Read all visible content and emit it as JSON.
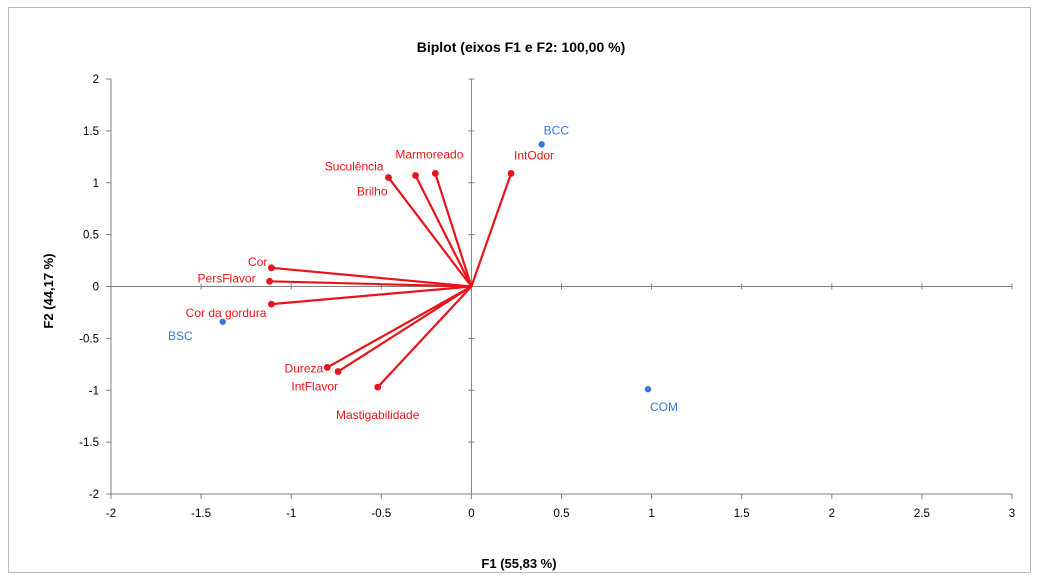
{
  "chart_data": {
    "type": "scatter",
    "subtype": "biplot",
    "title": "Biplot (eixos F1 e F2: 100,00 %)",
    "xlabel": "F1 (55,83 %)",
    "ylabel": "F2 (44,17 %)",
    "xlim": [
      -2,
      3
    ],
    "ylim": [
      -2,
      2
    ],
    "x_ticks": [
      -2,
      -1.5,
      -1,
      -0.5,
      0,
      0.5,
      1,
      1.5,
      2,
      2.5,
      3
    ],
    "x_tick_labels": [
      "-2",
      "-1.5",
      "-1",
      "-0.5",
      "0",
      "0.5",
      "1",
      "1.5",
      "2",
      "2.5",
      "3"
    ],
    "y_ticks": [
      -2,
      -1.5,
      -1,
      -0.5,
      0,
      0.5,
      1,
      1.5,
      2
    ],
    "y_tick_labels": [
      "-2",
      "-1.5",
      "-1",
      "-0.5",
      "0",
      "0.5",
      "1",
      "1.5",
      "2"
    ],
    "grid": false,
    "variable_color": "#e8141b",
    "observation_color": "#3b73e0",
    "variables": [
      {
        "name": "Marmoreado",
        "x": -0.2,
        "y": 1.09
      },
      {
        "name": "Suculência",
        "x": -0.46,
        "y": 1.05
      },
      {
        "name": "Brilho",
        "x": -0.31,
        "y": 1.07
      },
      {
        "name": "IntOdor",
        "x": 0.22,
        "y": 1.09
      },
      {
        "name": "Cor",
        "x": -1.11,
        "y": 0.18
      },
      {
        "name": "PersFlavor",
        "x": -1.12,
        "y": 0.05
      },
      {
        "name": "Cor da gordura",
        "x": -1.11,
        "y": -0.17
      },
      {
        "name": "Dureza",
        "x": -0.8,
        "y": -0.78
      },
      {
        "name": "IntFlavor",
        "x": -0.74,
        "y": -0.82
      },
      {
        "name": "Mastigabilidade",
        "x": -0.52,
        "y": -0.97
      }
    ],
    "observations": [
      {
        "name": "BCC",
        "x": 0.39,
        "y": 1.37
      },
      {
        "name": "BSC",
        "x": -1.38,
        "y": -0.34
      },
      {
        "name": "COM",
        "x": 0.98,
        "y": -0.99
      }
    ]
  }
}
